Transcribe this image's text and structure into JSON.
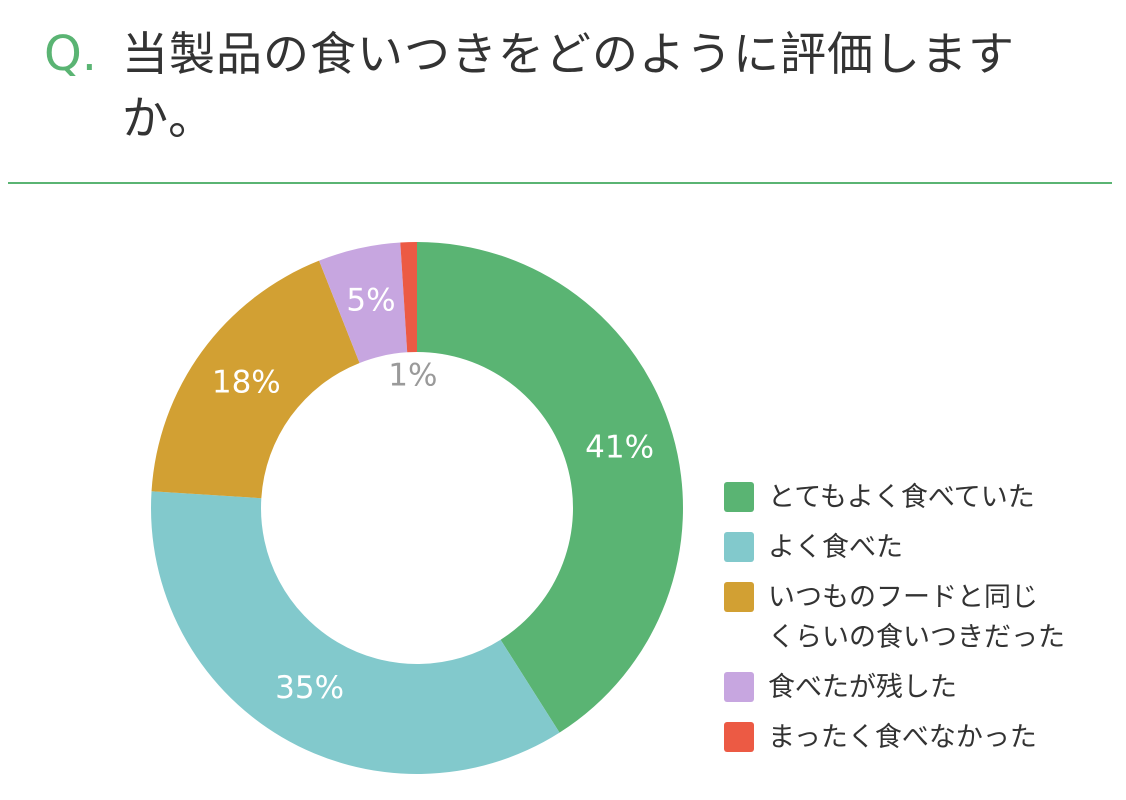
{
  "question": {
    "mark": "Q.",
    "text": "当製品の食いつきをどのように評価しますか。"
  },
  "colors": {
    "accent": "#5ab473",
    "divider": "#5ab473"
  },
  "chart_data": {
    "type": "pie",
    "variant": "donut",
    "categories": [
      "とてもよく食べていた",
      "よく食べた",
      "いつものフードと同じくらいの食いつきだった",
      "食べたが残した",
      "まったく食べなかった"
    ],
    "values": [
      41,
      35,
      18,
      5,
      1
    ],
    "value_labels": [
      "41%",
      "35%",
      "18%",
      "5%",
      "1%"
    ],
    "colors": [
      "#5ab473",
      "#82c9cc",
      "#d2a033",
      "#c7a6e0",
      "#ec5a44"
    ],
    "legend_placement": "right",
    "title": ""
  },
  "legend": [
    {
      "label": "とてもよく食べていた",
      "color": "#5ab473"
    },
    {
      "label": "よく食べた",
      "color": "#82c9cc"
    },
    {
      "label": "いつものフードと同じ\nくらいの食いつきだった",
      "color": "#d2a033"
    },
    {
      "label": "食べたが残した",
      "color": "#c7a6e0"
    },
    {
      "label": "まったく食べなかった",
      "color": "#ec5a44"
    }
  ]
}
